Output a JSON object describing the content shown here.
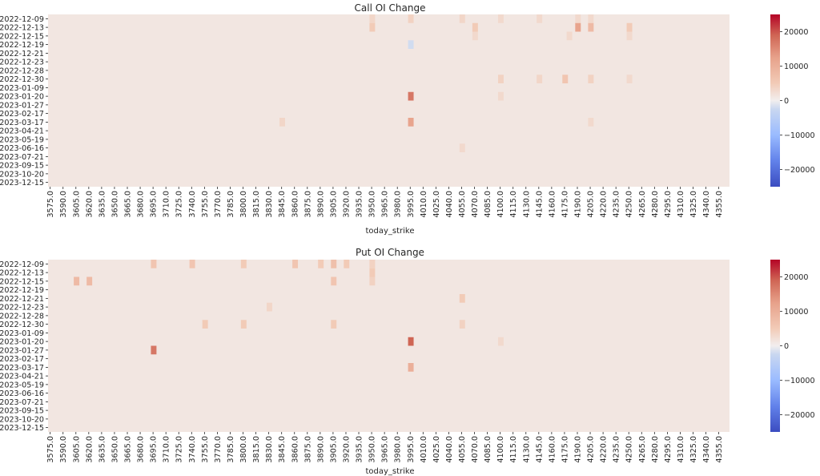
{
  "chart_data": [
    {
      "type": "heatmap",
      "title": "Call OI Change",
      "xlabel": "today_strike",
      "ylabel": "",
      "y_ticks": [
        "2022-12-09",
        "2022-12-13",
        "2022-12-15",
        "2022-12-19",
        "2022-12-21",
        "2022-12-23",
        "2022-12-28",
        "2022-12-30",
        "2023-01-09",
        "2023-01-20",
        "2023-01-27",
        "2023-02-17",
        "2023-03-17",
        "2023-04-21",
        "2023-05-19",
        "2023-06-16",
        "2023-07-21",
        "2023-09-15",
        "2023-10-20",
        "2023-12-15"
      ],
      "x_ticks": [
        "3575.0",
        "3590.0",
        "3605.0",
        "3620.0",
        "3635.0",
        "3650.0",
        "3665.0",
        "3680.0",
        "3695.0",
        "3710.0",
        "3725.0",
        "3740.0",
        "3755.0",
        "3770.0",
        "3785.0",
        "3800.0",
        "3815.0",
        "3830.0",
        "3845.0",
        "3860.0",
        "3875.0",
        "3890.0",
        "3905.0",
        "3920.0",
        "3935.0",
        "3950.0",
        "3965.0",
        "3980.0",
        "3995.0",
        "4010.0",
        "4025.0",
        "4040.0",
        "4055.0",
        "4070.0",
        "4085.0",
        "4100.0",
        "4115.0",
        "4130.0",
        "4145.0",
        "4160.0",
        "4175.0",
        "4190.0",
        "4205.0",
        "4220.0",
        "4235.0",
        "4250.0",
        "4265.0",
        "4280.0",
        "4295.0",
        "4310.0",
        "4325.0",
        "4340.0",
        "4355.0"
      ],
      "colorbar": {
        "colormap": "coolwarm",
        "vmin": -25000,
        "vmax": 25000,
        "ticks": [
          20000,
          10000,
          0,
          -10000,
          -20000
        ],
        "tick_labels": [
          "20000",
          "10000",
          "0",
          "−10000",
          "−20000"
        ]
      },
      "baseline_value": 1200,
      "highlight_cells": [
        {
          "date": "2022-12-09",
          "strike": 3950,
          "value": 3500
        },
        {
          "date": "2022-12-09",
          "strike": 3995,
          "value": 4000
        },
        {
          "date": "2022-12-09",
          "strike": 4055,
          "value": 3500
        },
        {
          "date": "2022-12-09",
          "strike": 4100,
          "value": 3000
        },
        {
          "date": "2022-12-09",
          "strike": 4145,
          "value": 3000
        },
        {
          "date": "2022-12-09",
          "strike": 4190,
          "value": 3000
        },
        {
          "date": "2022-12-09",
          "strike": 4205,
          "value": 3000
        },
        {
          "date": "2022-12-13",
          "strike": 3950,
          "value": 5000
        },
        {
          "date": "2022-12-13",
          "strike": 4070,
          "value": 5000
        },
        {
          "date": "2022-12-13",
          "strike": 4190,
          "value": 12000
        },
        {
          "date": "2022-12-13",
          "strike": 4205,
          "value": 8000
        },
        {
          "date": "2022-12-13",
          "strike": 4250,
          "value": 5000
        },
        {
          "date": "2022-12-15",
          "strike": 4070,
          "value": 3000
        },
        {
          "date": "2022-12-15",
          "strike": 4180,
          "value": 3000
        },
        {
          "date": "2022-12-15",
          "strike": 4250,
          "value": 3000
        },
        {
          "date": "2022-12-19",
          "strike": 3995,
          "value": -2000
        },
        {
          "date": "2022-12-30",
          "strike": 4100,
          "value": 4000
        },
        {
          "date": "2022-12-30",
          "strike": 4145,
          "value": 3500
        },
        {
          "date": "2022-12-30",
          "strike": 4175,
          "value": 6000
        },
        {
          "date": "2022-12-30",
          "strike": 4205,
          "value": 4000
        },
        {
          "date": "2022-12-30",
          "strike": 4250,
          "value": 3000
        },
        {
          "date": "2023-01-20",
          "strike": 3995,
          "value": 17000
        },
        {
          "date": "2023-01-20",
          "strike": 4100,
          "value": 3000
        },
        {
          "date": "2023-03-17",
          "strike": 3995,
          "value": 12000
        },
        {
          "date": "2023-03-17",
          "strike": 3845,
          "value": 3500
        },
        {
          "date": "2023-03-17",
          "strike": 4205,
          "value": 3000
        },
        {
          "date": "2023-06-16",
          "strike": 4055,
          "value": 3000
        }
      ]
    },
    {
      "type": "heatmap",
      "title": "Put OI Change",
      "xlabel": "today_strike",
      "ylabel": "",
      "y_ticks": [
        "2022-12-09",
        "2022-12-13",
        "2022-12-15",
        "2022-12-19",
        "2022-12-21",
        "2022-12-23",
        "2022-12-28",
        "2022-12-30",
        "2023-01-09",
        "2023-01-20",
        "2023-01-27",
        "2023-02-17",
        "2023-03-17",
        "2023-04-21",
        "2023-05-19",
        "2023-06-16",
        "2023-07-21",
        "2023-09-15",
        "2023-10-20",
        "2023-12-15"
      ],
      "x_ticks": [
        "3575.0",
        "3590.0",
        "3605.0",
        "3620.0",
        "3635.0",
        "3650.0",
        "3665.0",
        "3680.0",
        "3695.0",
        "3710.0",
        "3725.0",
        "3740.0",
        "3755.0",
        "3770.0",
        "3785.0",
        "3800.0",
        "3815.0",
        "3830.0",
        "3845.0",
        "3860.0",
        "3875.0",
        "3890.0",
        "3905.0",
        "3920.0",
        "3935.0",
        "3950.0",
        "3965.0",
        "3980.0",
        "3995.0",
        "4010.0",
        "4025.0",
        "4040.0",
        "4055.0",
        "4070.0",
        "4085.0",
        "4100.0",
        "4115.0",
        "4130.0",
        "4145.0",
        "4160.0",
        "4175.0",
        "4190.0",
        "4205.0",
        "4220.0",
        "4235.0",
        "4250.0",
        "4265.0",
        "4280.0",
        "4295.0",
        "4310.0",
        "4325.0",
        "4340.0",
        "4355.0"
      ],
      "colorbar": {
        "colormap": "coolwarm",
        "vmin": -25000,
        "vmax": 25000,
        "ticks": [
          20000,
          10000,
          0,
          -10000,
          -20000
        ],
        "tick_labels": [
          "20000",
          "10000",
          "0",
          "−10000",
          "−20000"
        ]
      },
      "baseline_value": 1200,
      "highlight_cells": [
        {
          "date": "2022-12-09",
          "strike": 3695,
          "value": 6000
        },
        {
          "date": "2022-12-09",
          "strike": 3740,
          "value": 6000
        },
        {
          "date": "2022-12-09",
          "strike": 3800,
          "value": 5000
        },
        {
          "date": "2022-12-09",
          "strike": 3860,
          "value": 6000
        },
        {
          "date": "2022-12-09",
          "strike": 3905,
          "value": 7000
        },
        {
          "date": "2022-12-09",
          "strike": 3890,
          "value": 5000
        },
        {
          "date": "2022-12-09",
          "strike": 3920,
          "value": 5000
        },
        {
          "date": "2022-12-09",
          "strike": 3950,
          "value": 4000
        },
        {
          "date": "2022-12-13",
          "strike": 3950,
          "value": 5000
        },
        {
          "date": "2022-12-15",
          "strike": 3605,
          "value": 8000
        },
        {
          "date": "2022-12-15",
          "strike": 3620,
          "value": 8000
        },
        {
          "date": "2022-12-15",
          "strike": 3905,
          "value": 6000
        },
        {
          "date": "2022-12-15",
          "strike": 3950,
          "value": 4000
        },
        {
          "date": "2022-12-21",
          "strike": 4055,
          "value": 5000
        },
        {
          "date": "2022-12-23",
          "strike": 3830,
          "value": 3500
        },
        {
          "date": "2022-12-30",
          "strike": 3755,
          "value": 5000
        },
        {
          "date": "2022-12-30",
          "strike": 3800,
          "value": 5000
        },
        {
          "date": "2022-12-30",
          "strike": 3905,
          "value": 5000
        },
        {
          "date": "2022-12-30",
          "strike": 4055,
          "value": 4000
        },
        {
          "date": "2023-01-20",
          "strike": 3995,
          "value": 19000
        },
        {
          "date": "2023-01-20",
          "strike": 4100,
          "value": 3000
        },
        {
          "date": "2023-01-27",
          "strike": 3695,
          "value": 17000
        },
        {
          "date": "2023-03-17",
          "strike": 3995,
          "value": 10000
        }
      ]
    }
  ]
}
